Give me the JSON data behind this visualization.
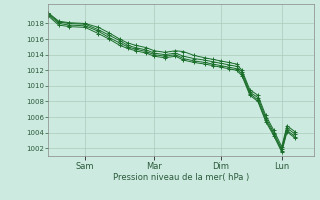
{
  "background_color": "#cceae0",
  "grid_color": "#aaccbb",
  "line_color": "#1a6e2a",
  "marker_color": "#1a6e2a",
  "xlabel": "Pression niveau de la mer( hPa )",
  "ylim": [
    1001.0,
    1020.5
  ],
  "yticks": [
    1002,
    1004,
    1006,
    1008,
    1010,
    1012,
    1014,
    1016,
    1018
  ],
  "xtick_labels": [
    "Sam",
    "Mar",
    "Dim",
    "Lun"
  ],
  "xtick_positions": [
    0.14,
    0.4,
    0.65,
    0.88
  ],
  "series": [
    [
      0.0,
      1019.4,
      0.04,
      1018.3,
      0.08,
      1018.1,
      0.14,
      1018.0,
      0.19,
      1017.5,
      0.23,
      1016.8,
      0.27,
      1016.0,
      0.3,
      1015.5,
      0.33,
      1015.2,
      0.37,
      1014.9,
      0.4,
      1014.5,
      0.44,
      1014.3,
      0.48,
      1014.5,
      0.51,
      1014.4,
      0.55,
      1013.9,
      0.59,
      1013.6,
      0.62,
      1013.4,
      0.65,
      1013.2,
      0.68,
      1013.0,
      0.71,
      1012.8,
      0.73,
      1012.0,
      0.76,
      1009.5,
      0.79,
      1008.8,
      0.82,
      1006.2,
      0.85,
      1004.3,
      0.88,
      1002.2,
      0.9,
      1004.9,
      0.93,
      1004.1
    ],
    [
      0.0,
      1019.3,
      0.04,
      1018.2,
      0.08,
      1018.0,
      0.14,
      1017.9,
      0.19,
      1017.2,
      0.23,
      1016.5,
      0.27,
      1015.8,
      0.3,
      1015.2,
      0.33,
      1014.9,
      0.37,
      1014.6,
      0.4,
      1014.2,
      0.44,
      1014.0,
      0.48,
      1014.2,
      0.51,
      1013.8,
      0.55,
      1013.5,
      0.59,
      1013.3,
      0.62,
      1013.1,
      0.65,
      1012.9,
      0.68,
      1012.7,
      0.71,
      1012.5,
      0.73,
      1011.8,
      0.76,
      1009.2,
      0.79,
      1008.5,
      0.82,
      1005.9,
      0.85,
      1004.0,
      0.88,
      1001.9,
      0.9,
      1004.6,
      0.93,
      1003.8
    ],
    [
      0.0,
      1019.2,
      0.04,
      1018.0,
      0.08,
      1017.8,
      0.14,
      1017.7,
      0.19,
      1017.0,
      0.23,
      1016.2,
      0.27,
      1015.5,
      0.3,
      1015.0,
      0.33,
      1014.7,
      0.37,
      1014.4,
      0.4,
      1014.0,
      0.44,
      1013.8,
      0.48,
      1014.0,
      0.51,
      1013.5,
      0.55,
      1013.2,
      0.59,
      1013.0,
      0.62,
      1012.8,
      0.65,
      1012.6,
      0.68,
      1012.4,
      0.71,
      1012.2,
      0.73,
      1011.5,
      0.76,
      1009.0,
      0.79,
      1008.2,
      0.82,
      1005.6,
      0.85,
      1003.8,
      0.88,
      1001.7,
      0.9,
      1004.3,
      0.93,
      1003.5
    ],
    [
      0.0,
      1019.0,
      0.04,
      1017.8,
      0.08,
      1017.6,
      0.14,
      1017.5,
      0.19,
      1016.7,
      0.23,
      1016.0,
      0.27,
      1015.2,
      0.3,
      1014.8,
      0.33,
      1014.5,
      0.37,
      1014.2,
      0.4,
      1013.8,
      0.44,
      1013.6,
      0.48,
      1013.8,
      0.51,
      1013.3,
      0.55,
      1013.0,
      0.59,
      1012.8,
      0.62,
      1012.6,
      0.65,
      1012.4,
      0.68,
      1012.2,
      0.71,
      1012.0,
      0.73,
      1011.3,
      0.76,
      1008.8,
      0.79,
      1008.0,
      0.82,
      1005.4,
      0.85,
      1003.6,
      0.88,
      1001.5,
      0.9,
      1004.1,
      0.93,
      1003.3
    ]
  ]
}
